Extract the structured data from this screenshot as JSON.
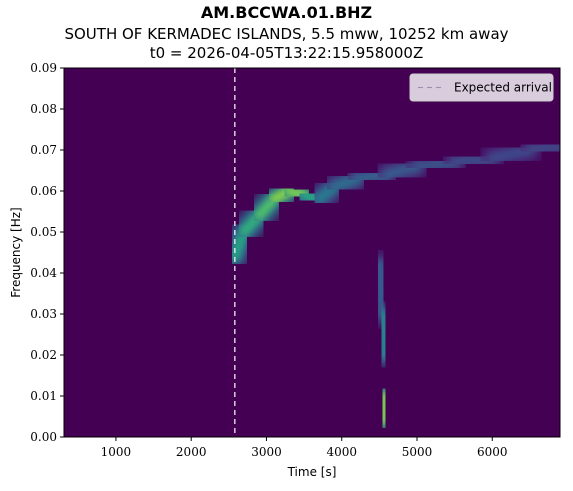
{
  "chart_data": {
    "type": "heatmap",
    "title": "AM.BCCWA.01.BHZ",
    "subtitle": "SOUTH OF KERMADEC ISLANDS, 5.5 mww, 10252 km away",
    "subtitle2": "t0 = 2026-04-05T13:22:15.958000Z",
    "xlabel": "Time [s]",
    "ylabel": "Frequency [Hz]",
    "xlim": [
      310,
      6900
    ],
    "ylim": [
      0,
      0.09
    ],
    "x_ticks": [
      1000,
      2000,
      3000,
      4000,
      5000,
      6000
    ],
    "y_ticks": [
      0.0,
      0.01,
      0.02,
      0.03,
      0.04,
      0.05,
      0.06,
      0.07,
      0.08,
      0.09
    ],
    "x_tick_labels": [
      "1000",
      "2000",
      "3000",
      "4000",
      "5000",
      "6000"
    ],
    "y_tick_labels": [
      "0.00",
      "0.01",
      "0.02",
      "0.03",
      "0.04",
      "0.05",
      "0.06",
      "0.07",
      "0.08",
      "0.09"
    ],
    "colormap": "viridis",
    "expected_arrival": 2580,
    "legend": {
      "label": "Expected arrival",
      "position": "upper right"
    },
    "energy_features": [
      {
        "kind": "dispersion_ridge",
        "points": [
          [
            2580,
            0.044
          ],
          [
            2700,
            0.05
          ],
          [
            2900,
            0.054
          ],
          [
            3100,
            0.058
          ],
          [
            3300,
            0.06
          ],
          [
            3500,
            0.059
          ],
          [
            3700,
            0.058
          ],
          [
            3900,
            0.061
          ],
          [
            4200,
            0.063
          ],
          [
            4600,
            0.064
          ],
          [
            5000,
            0.066
          ],
          [
            5500,
            0.067
          ],
          [
            6000,
            0.068
          ],
          [
            6500,
            0.07
          ],
          [
            6900,
            0.071
          ]
        ],
        "intensity": [
          0.55,
          0.62,
          0.66,
          0.78,
          0.85,
          0.75,
          0.45,
          0.4,
          0.32,
          0.3,
          0.27,
          0.24,
          0.22,
          0.22,
          0.2
        ]
      },
      {
        "kind": "low_freq_column",
        "points": [
          [
            4500,
            0.042
          ],
          [
            4540,
            0.03
          ],
          [
            4570,
            0.02
          ],
          [
            4570,
            0.01
          ],
          [
            4550,
            0.004
          ]
        ],
        "intensity": [
          0.22,
          0.38,
          0.55,
          0.8,
          0.82
        ]
      }
    ]
  }
}
